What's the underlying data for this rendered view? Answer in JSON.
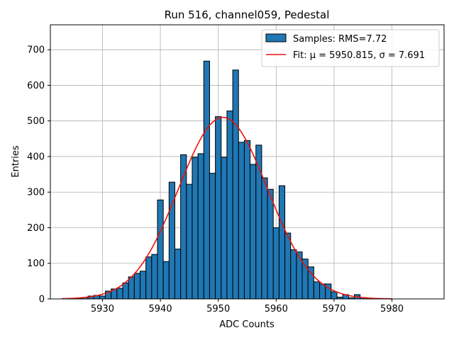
{
  "chart_data": {
    "type": "bar",
    "title": "Run 516, channel059, Pedestal",
    "xlabel": "ADC Counts",
    "ylabel": "Entries",
    "xlim": [
      5921,
      5989
    ],
    "ylim": [
      0,
      770
    ],
    "xticks": [
      5930,
      5940,
      5950,
      5960,
      5970,
      5980
    ],
    "yticks": [
      0,
      100,
      200,
      300,
      400,
      500,
      600,
      700
    ],
    "grid": true,
    "legend_position": "top-right",
    "histogram": {
      "name": "Samples: RMS=7.72",
      "bin_width": 1,
      "color": "#1f77b4",
      "edge_color": "#000000",
      "bins": [
        {
          "x": 5925,
          "y": 1
        },
        {
          "x": 5926,
          "y": 2
        },
        {
          "x": 5927,
          "y": 4
        },
        {
          "x": 5928,
          "y": 8
        },
        {
          "x": 5929,
          "y": 10
        },
        {
          "x": 5930,
          "y": 8
        },
        {
          "x": 5931,
          "y": 22
        },
        {
          "x": 5932,
          "y": 28
        },
        {
          "x": 5933,
          "y": 30
        },
        {
          "x": 5934,
          "y": 45
        },
        {
          "x": 5935,
          "y": 62
        },
        {
          "x": 5936,
          "y": 72
        },
        {
          "x": 5937,
          "y": 78
        },
        {
          "x": 5938,
          "y": 118
        },
        {
          "x": 5939,
          "y": 125
        },
        {
          "x": 5940,
          "y": 278
        },
        {
          "x": 5941,
          "y": 105
        },
        {
          "x": 5942,
          "y": 328
        },
        {
          "x": 5943,
          "y": 140
        },
        {
          "x": 5944,
          "y": 405
        },
        {
          "x": 5945,
          "y": 322
        },
        {
          "x": 5946,
          "y": 398
        },
        {
          "x": 5947,
          "y": 408
        },
        {
          "x": 5948,
          "y": 668
        },
        {
          "x": 5949,
          "y": 353
        },
        {
          "x": 5950,
          "y": 512
        },
        {
          "x": 5951,
          "y": 398
        },
        {
          "x": 5952,
          "y": 528
        },
        {
          "x": 5953,
          "y": 643
        },
        {
          "x": 5954,
          "y": 440
        },
        {
          "x": 5955,
          "y": 445
        },
        {
          "x": 5956,
          "y": 378
        },
        {
          "x": 5957,
          "y": 432
        },
        {
          "x": 5958,
          "y": 340
        },
        {
          "x": 5959,
          "y": 308
        },
        {
          "x": 5960,
          "y": 200
        },
        {
          "x": 5961,
          "y": 318
        },
        {
          "x": 5962,
          "y": 185
        },
        {
          "x": 5963,
          "y": 138
        },
        {
          "x": 5964,
          "y": 132
        },
        {
          "x": 5965,
          "y": 112
        },
        {
          "x": 5966,
          "y": 90
        },
        {
          "x": 5967,
          "y": 48
        },
        {
          "x": 5968,
          "y": 42
        },
        {
          "x": 5969,
          "y": 42
        },
        {
          "x": 5970,
          "y": 20
        },
        {
          "x": 5971,
          "y": 5
        },
        {
          "x": 5972,
          "y": 12
        },
        {
          "x": 5973,
          "y": 3
        },
        {
          "x": 5974,
          "y": 12
        },
        {
          "x": 5975,
          "y": 4
        },
        {
          "x": 5976,
          "y": 2
        },
        {
          "x": 5977,
          "y": 1
        },
        {
          "x": 5978,
          "y": 1
        }
      ]
    },
    "fit": {
      "name": "Fit: μ = 5950.815, σ = 7.691",
      "mu": 5950.815,
      "sigma": 7.691,
      "amplitude": 510,
      "x_range": [
        5923,
        5980
      ],
      "color": "#e8130f"
    }
  }
}
